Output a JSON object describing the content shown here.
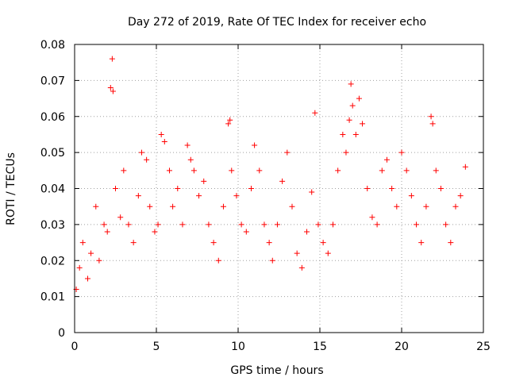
{
  "chart_data": {
    "type": "scatter",
    "title": "Day 272 of 2019, Rate Of TEC Index for receiver echo",
    "xlabel": "GPS time / hours",
    "ylabel": "ROTI / TECUs",
    "xlim": [
      0,
      25
    ],
    "ylim": [
      0,
      0.08
    ],
    "xticks": [
      0,
      5,
      10,
      15,
      20,
      25
    ],
    "yticks": [
      0,
      0.01,
      0.02,
      0.03,
      0.04,
      0.05,
      0.06,
      0.07,
      0.08
    ],
    "xtick_labels": [
      "0",
      "5",
      "10",
      "15",
      "20",
      "25"
    ],
    "ytick_labels": [
      "0",
      "0.01",
      "0.02",
      "0.03",
      "0.04",
      "0.05",
      "0.06",
      "0.07",
      "0.08"
    ],
    "grid": true,
    "marker": "+",
    "color": "#ff0000",
    "series": [
      {
        "x": [
          0.1,
          0.3,
          0.5,
          0.8,
          1.0,
          1.3,
          1.5,
          1.8,
          2.0,
          2.2,
          2.3,
          2.35,
          2.5,
          2.8,
          3.0,
          3.3,
          3.6,
          3.9,
          4.1,
          4.4,
          4.6,
          4.9,
          5.1,
          5.3,
          5.5,
          5.8,
          6.0,
          6.3,
          6.6,
          6.9,
          7.1,
          7.3,
          7.6,
          7.9,
          8.2,
          8.5,
          8.8,
          9.1,
          9.4,
          9.5,
          9.6,
          9.9,
          10.2,
          10.5,
          10.8,
          11.0,
          11.3,
          11.6,
          11.9,
          12.1,
          12.4,
          12.7,
          13.0,
          13.3,
          13.6,
          13.9,
          14.2,
          14.5,
          14.7,
          14.9,
          15.2,
          15.5,
          15.8,
          16.1,
          16.4,
          16.6,
          16.8,
          16.9,
          17.0,
          17.2,
          17.4,
          17.6,
          17.9,
          18.2,
          18.5,
          18.8,
          19.1,
          19.4,
          19.7,
          20.0,
          20.3,
          20.6,
          20.9,
          21.2,
          21.5,
          21.8,
          21.9,
          22.1,
          22.4,
          22.7,
          23.0,
          23.3,
          23.6,
          23.9
        ],
        "y": [
          0.012,
          0.018,
          0.025,
          0.015,
          0.022,
          0.035,
          0.02,
          0.03,
          0.028,
          0.068,
          0.076,
          0.067,
          0.04,
          0.032,
          0.045,
          0.03,
          0.025,
          0.038,
          0.05,
          0.048,
          0.035,
          0.028,
          0.03,
          0.055,
          0.053,
          0.045,
          0.035,
          0.04,
          0.03,
          0.052,
          0.048,
          0.045,
          0.038,
          0.042,
          0.03,
          0.025,
          0.02,
          0.035,
          0.058,
          0.059,
          0.045,
          0.038,
          0.03,
          0.028,
          0.04,
          0.052,
          0.045,
          0.03,
          0.025,
          0.02,
          0.03,
          0.042,
          0.05,
          0.035,
          0.022,
          0.018,
          0.028,
          0.039,
          0.061,
          0.03,
          0.025,
          0.022,
          0.03,
          0.045,
          0.055,
          0.05,
          0.059,
          0.069,
          0.063,
          0.055,
          0.065,
          0.058,
          0.04,
          0.032,
          0.03,
          0.045,
          0.048,
          0.04,
          0.035,
          0.05,
          0.045,
          0.038,
          0.03,
          0.025,
          0.035,
          0.06,
          0.058,
          0.045,
          0.04,
          0.03,
          0.025,
          0.035,
          0.038,
          0.046
        ]
      }
    ]
  }
}
